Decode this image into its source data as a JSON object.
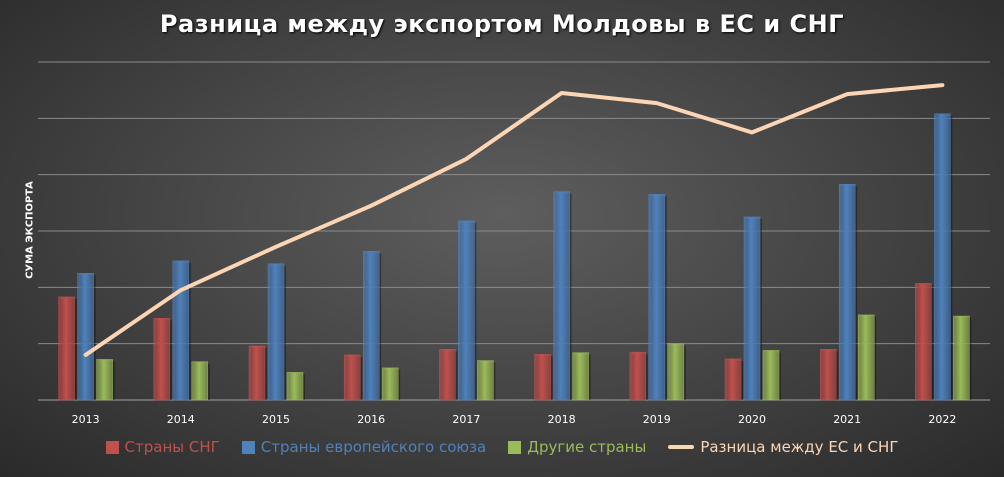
{
  "chart_data": {
    "type": "bar",
    "title": "Разница между экспортом Молдовы в ЕС и СНГ",
    "xlabel": "",
    "ylabel": "СУМА ЭКСПОРТА",
    "categories": [
      "2013",
      "2014",
      "2015",
      "2016",
      "2017",
      "2018",
      "2019",
      "2020",
      "2021",
      "2022"
    ],
    "ylim": [
      0,
      6
    ],
    "grid": true,
    "legend_position": "bottom",
    "series": [
      {
        "name": "Страны СНГ",
        "type": "bar",
        "color": "#c0504d",
        "values": [
          1.83,
          1.45,
          0.96,
          0.8,
          0.9,
          0.81,
          0.85,
          0.73,
          0.9,
          2.07
        ]
      },
      {
        "name": "Страны европейского союза",
        "type": "bar",
        "color": "#4f81bd",
        "values": [
          2.25,
          2.47,
          2.42,
          2.64,
          3.18,
          3.7,
          3.65,
          3.25,
          3.83,
          5.08
        ]
      },
      {
        "name": "Другие страны",
        "type": "bar",
        "color": "#9bbb59",
        "values": [
          0.72,
          0.68,
          0.49,
          0.57,
          0.7,
          0.84,
          1.0,
          0.88,
          1.51,
          1.49
        ]
      },
      {
        "name": "Разница между ЕС и СНГ",
        "type": "line",
        "color": "#fcd5b5",
        "values": [
          0.8,
          1.95,
          2.72,
          3.45,
          4.28,
          5.45,
          5.27,
          4.75,
          5.43,
          5.59
        ]
      }
    ]
  }
}
